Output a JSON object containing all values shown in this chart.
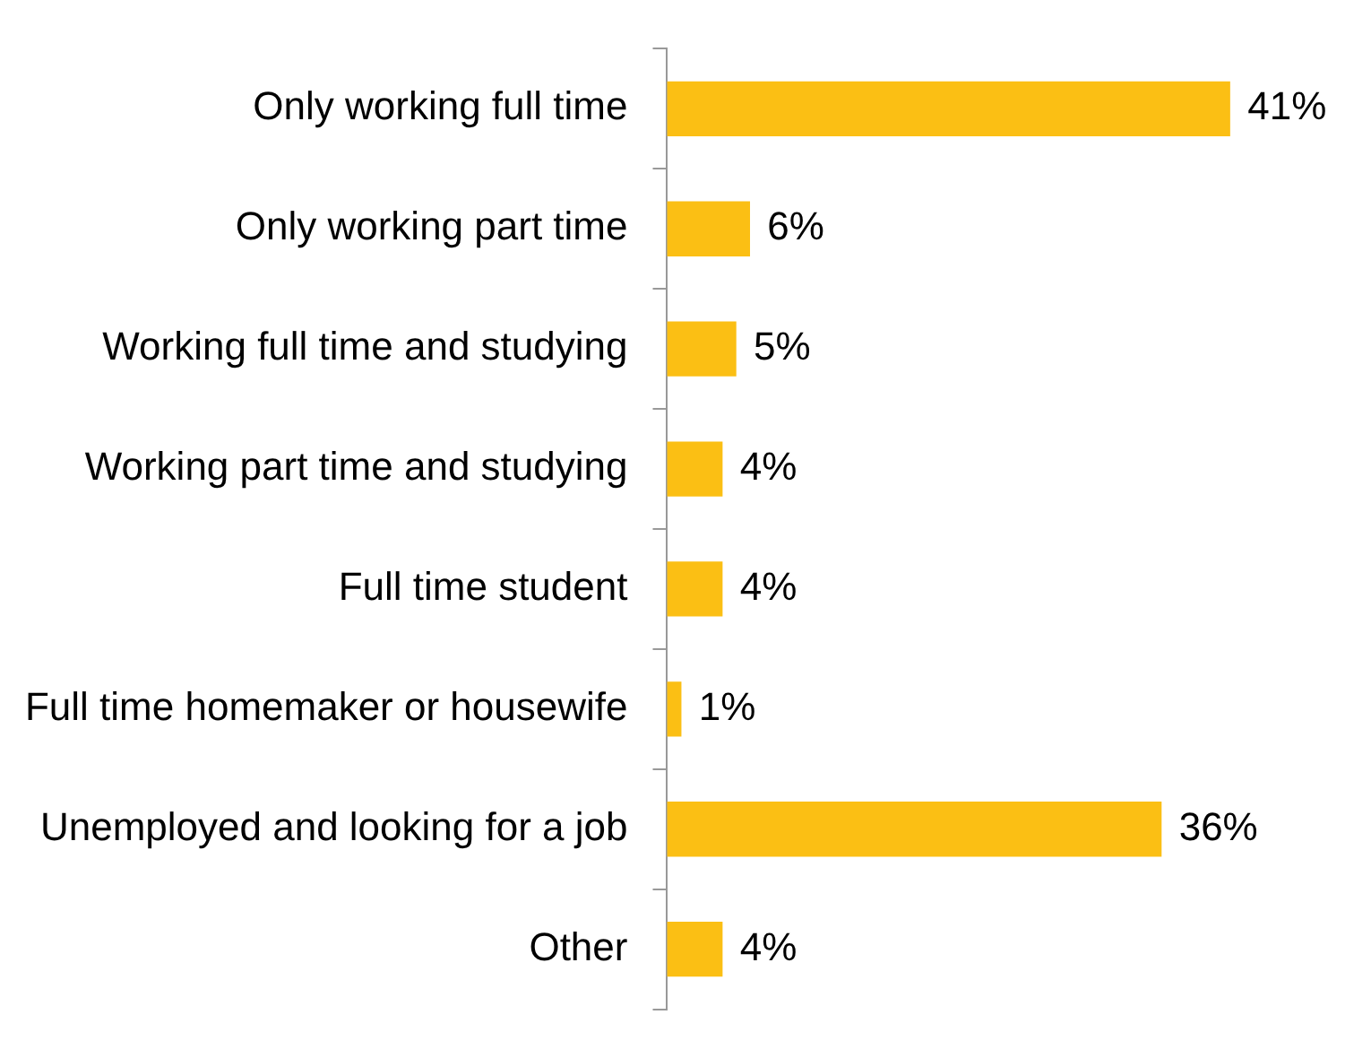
{
  "chart_data": {
    "type": "bar",
    "orientation": "horizontal",
    "categories": [
      "Only working full time",
      "Only working part time",
      "Working full time and studying",
      "Working part time and studying",
      "Full time student",
      "Full time homemaker or housewife",
      "Unemployed and looking for a job",
      "Other"
    ],
    "values": [
      41,
      6,
      5,
      4,
      4,
      1,
      36,
      4
    ],
    "value_labels": [
      "41%",
      "6%",
      "5%",
      "4%",
      "4%",
      "1%",
      "36%",
      "4%"
    ],
    "color": "#fbbf14"
  }
}
